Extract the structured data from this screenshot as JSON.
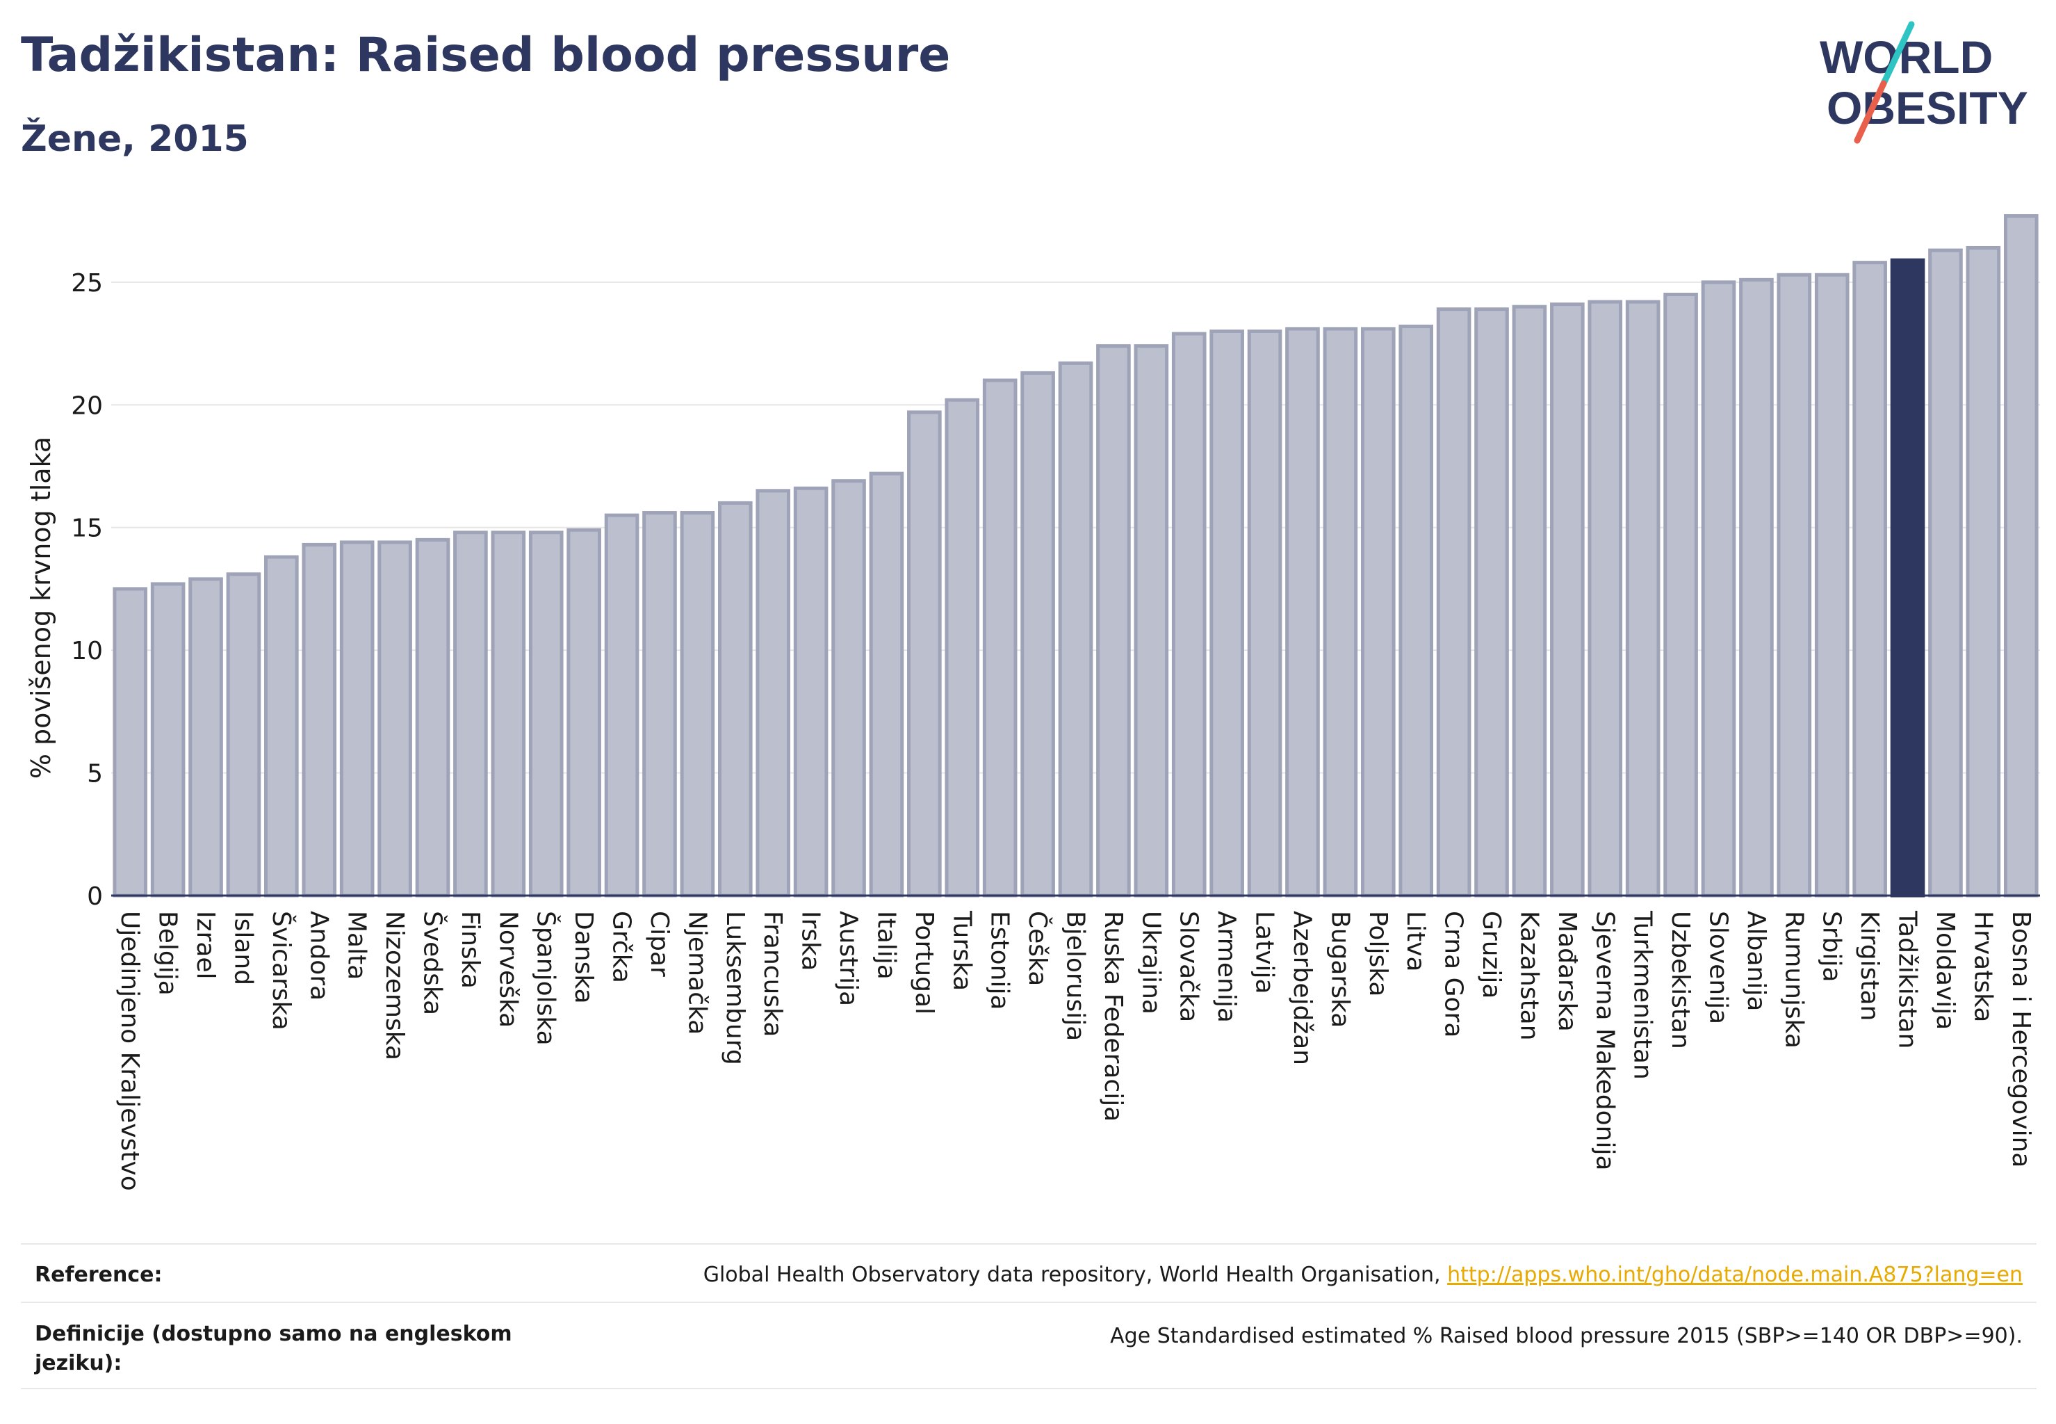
{
  "header": {
    "title": "Tadžikistan: Raised blood pressure",
    "subtitle": "Žene, 2015"
  },
  "logo": {
    "line1": "WORLD",
    "line2": "OBESITY",
    "text_color": "#2d3760",
    "slash_color_top": "#2ec4c4",
    "slash_color_bottom": "#e8604c"
  },
  "chart_data": {
    "type": "bar",
    "ylabel": "% povišenog krvnog tlaka",
    "xlabel": "",
    "ylim": [
      0,
      28
    ],
    "yticks": [
      0,
      5,
      10,
      15,
      20,
      25
    ],
    "grid": true,
    "highlight": "Tadžikistan",
    "colors": {
      "bar": "#bcbfce",
      "bar_outline": "#9ea3b8",
      "highlight": "#2d3760"
    },
    "categories": [
      "Ujedinjeno Kraljevstvo",
      "Belgija",
      "Izrael",
      "Island",
      "Švicarska",
      "Andora",
      "Malta",
      "Nizozemska",
      "Švedska",
      "Finska",
      "Norveška",
      "Španjolska",
      "Danska",
      "Grčka",
      "Cipar",
      "Njemačka",
      "Luksemburg",
      "Francuska",
      "Irska",
      "Austrija",
      "Italija",
      "Portugal",
      "Turska",
      "Estonija",
      "Češka",
      "Bjelorusija",
      "Ruska Federacija",
      "Ukrajina",
      "Slovačka",
      "Armenija",
      "Latvija",
      "Azerbejdžan",
      "Bugarska",
      "Poljska",
      "Litva",
      "Crna Gora",
      "Gruzija",
      "Kazahstan",
      "Mađarska",
      "Sjeverna Makedonija",
      "Turkmenistan",
      "Uzbekistan",
      "Slovenija",
      "Albanija",
      "Rumunjska",
      "Srbija",
      "Kirgistan",
      "Tadžikistan",
      "Moldavija",
      "Hrvatska",
      "Bosna i Hercegovina"
    ],
    "values": [
      12.5,
      12.7,
      12.9,
      13.1,
      13.8,
      14.3,
      14.4,
      14.4,
      14.5,
      14.8,
      14.8,
      14.8,
      14.9,
      15.5,
      15.6,
      15.6,
      16.0,
      16.5,
      16.6,
      16.9,
      17.2,
      19.7,
      20.2,
      21.0,
      21.3,
      21.7,
      22.4,
      22.4,
      22.9,
      23.0,
      23.0,
      23.1,
      23.1,
      23.1,
      23.2,
      23.9,
      23.9,
      24.0,
      24.1,
      24.2,
      24.2,
      24.5,
      25.0,
      25.1,
      25.3,
      25.3,
      25.8,
      25.9,
      26.3,
      26.4,
      27.7
    ]
  },
  "footer": {
    "reference_label": "Reference:",
    "reference_text": "Global Health Observatory data repository, World Health Organisation,",
    "reference_link": "http://apps.who.int/gho/data/node.main.A875?lang=en",
    "definition_label": "Definicije (dostupno samo na engleskom jeziku):",
    "definition_text": "Age Standardised estimated % Raised blood pressure 2015 (SBP>=140 OR DBP>=90)."
  }
}
